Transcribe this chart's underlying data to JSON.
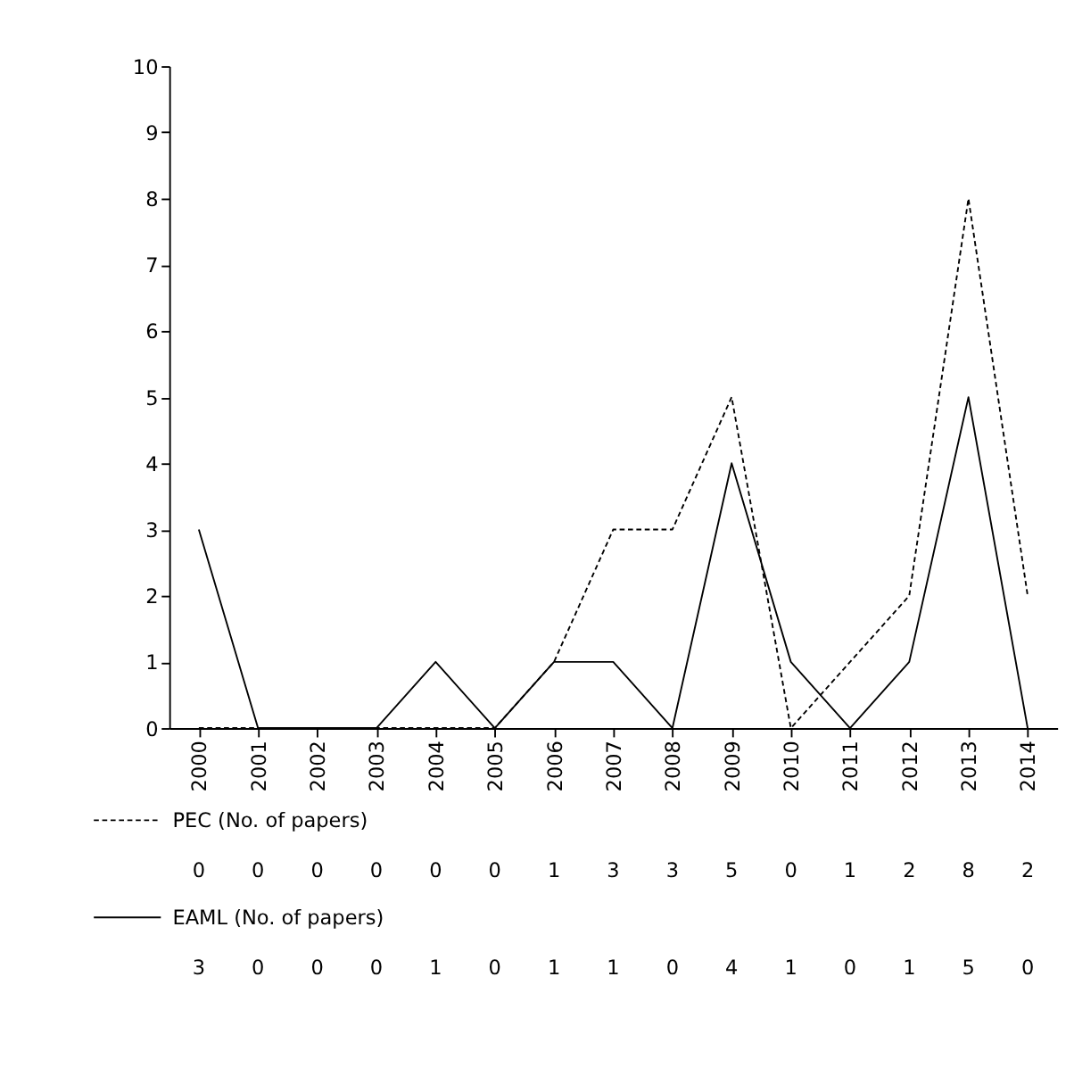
{
  "chart_data": {
    "type": "line",
    "categories": [
      "2000",
      "2001",
      "2002",
      "2003",
      "2004",
      "2005",
      "2006",
      "2007",
      "2008",
      "2009",
      "2010",
      "2011",
      "2012",
      "2013",
      "2014"
    ],
    "series": [
      {
        "name": "PEC (No. of papers)",
        "color": "#000000",
        "line_style": "dashed",
        "values": [
          0,
          0,
          0,
          0,
          0,
          0,
          1,
          3,
          3,
          5,
          0,
          1,
          2,
          8,
          2
        ]
      },
      {
        "name": "EAML (No. of papers)",
        "color": "#000000",
        "line_style": "solid",
        "values": [
          3,
          0,
          0,
          0,
          1,
          0,
          1,
          1,
          0,
          4,
          1,
          0,
          1,
          5,
          0
        ]
      }
    ],
    "ylim": [
      0,
      10
    ],
    "yticks": [
      0,
      1,
      2,
      3,
      4,
      5,
      6,
      7,
      8,
      9,
      10
    ],
    "grid": false,
    "legend": "bottom",
    "data_labels": true,
    "marker": "none"
  }
}
